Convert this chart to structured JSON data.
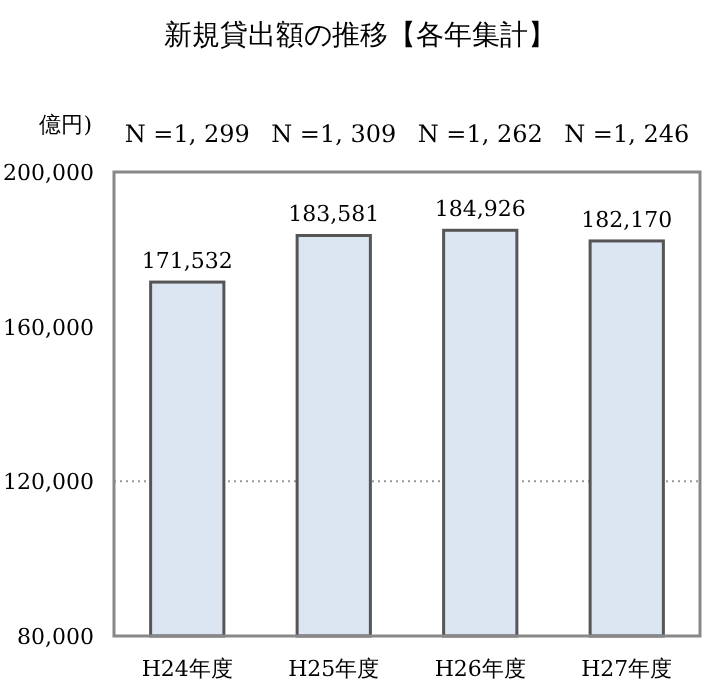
{
  "chart_data": {
    "type": "bar",
    "title": "新規貸出額の推移【各年集計】",
    "ylabel": "億円)",
    "categories": [
      "H24年度",
      "H25年度",
      "H26年度",
      "H27年度"
    ],
    "values": [
      171532,
      183581,
      184926,
      182170
    ],
    "value_labels": [
      "171,532",
      "183,581",
      "184,926",
      "182,170"
    ],
    "color": "#dce6f2",
    "ylim": [
      80000,
      200000
    ],
    "yticks": [
      {
        "value": 80000,
        "label": "80,000"
      },
      {
        "value": 120000,
        "label": "120,000"
      },
      {
        "value": 160000,
        "label": "160,000"
      },
      {
        "value": 200000,
        "label": "200,000"
      }
    ],
    "ref_lines": [
      {
        "axis": "y",
        "value": 120000,
        "line_style": "dotted",
        "color": "#999999"
      }
    ],
    "annotations": [
      "N =1, 299",
      "N =1, 309",
      "N =1, 262",
      "N =1, 246"
    ]
  }
}
